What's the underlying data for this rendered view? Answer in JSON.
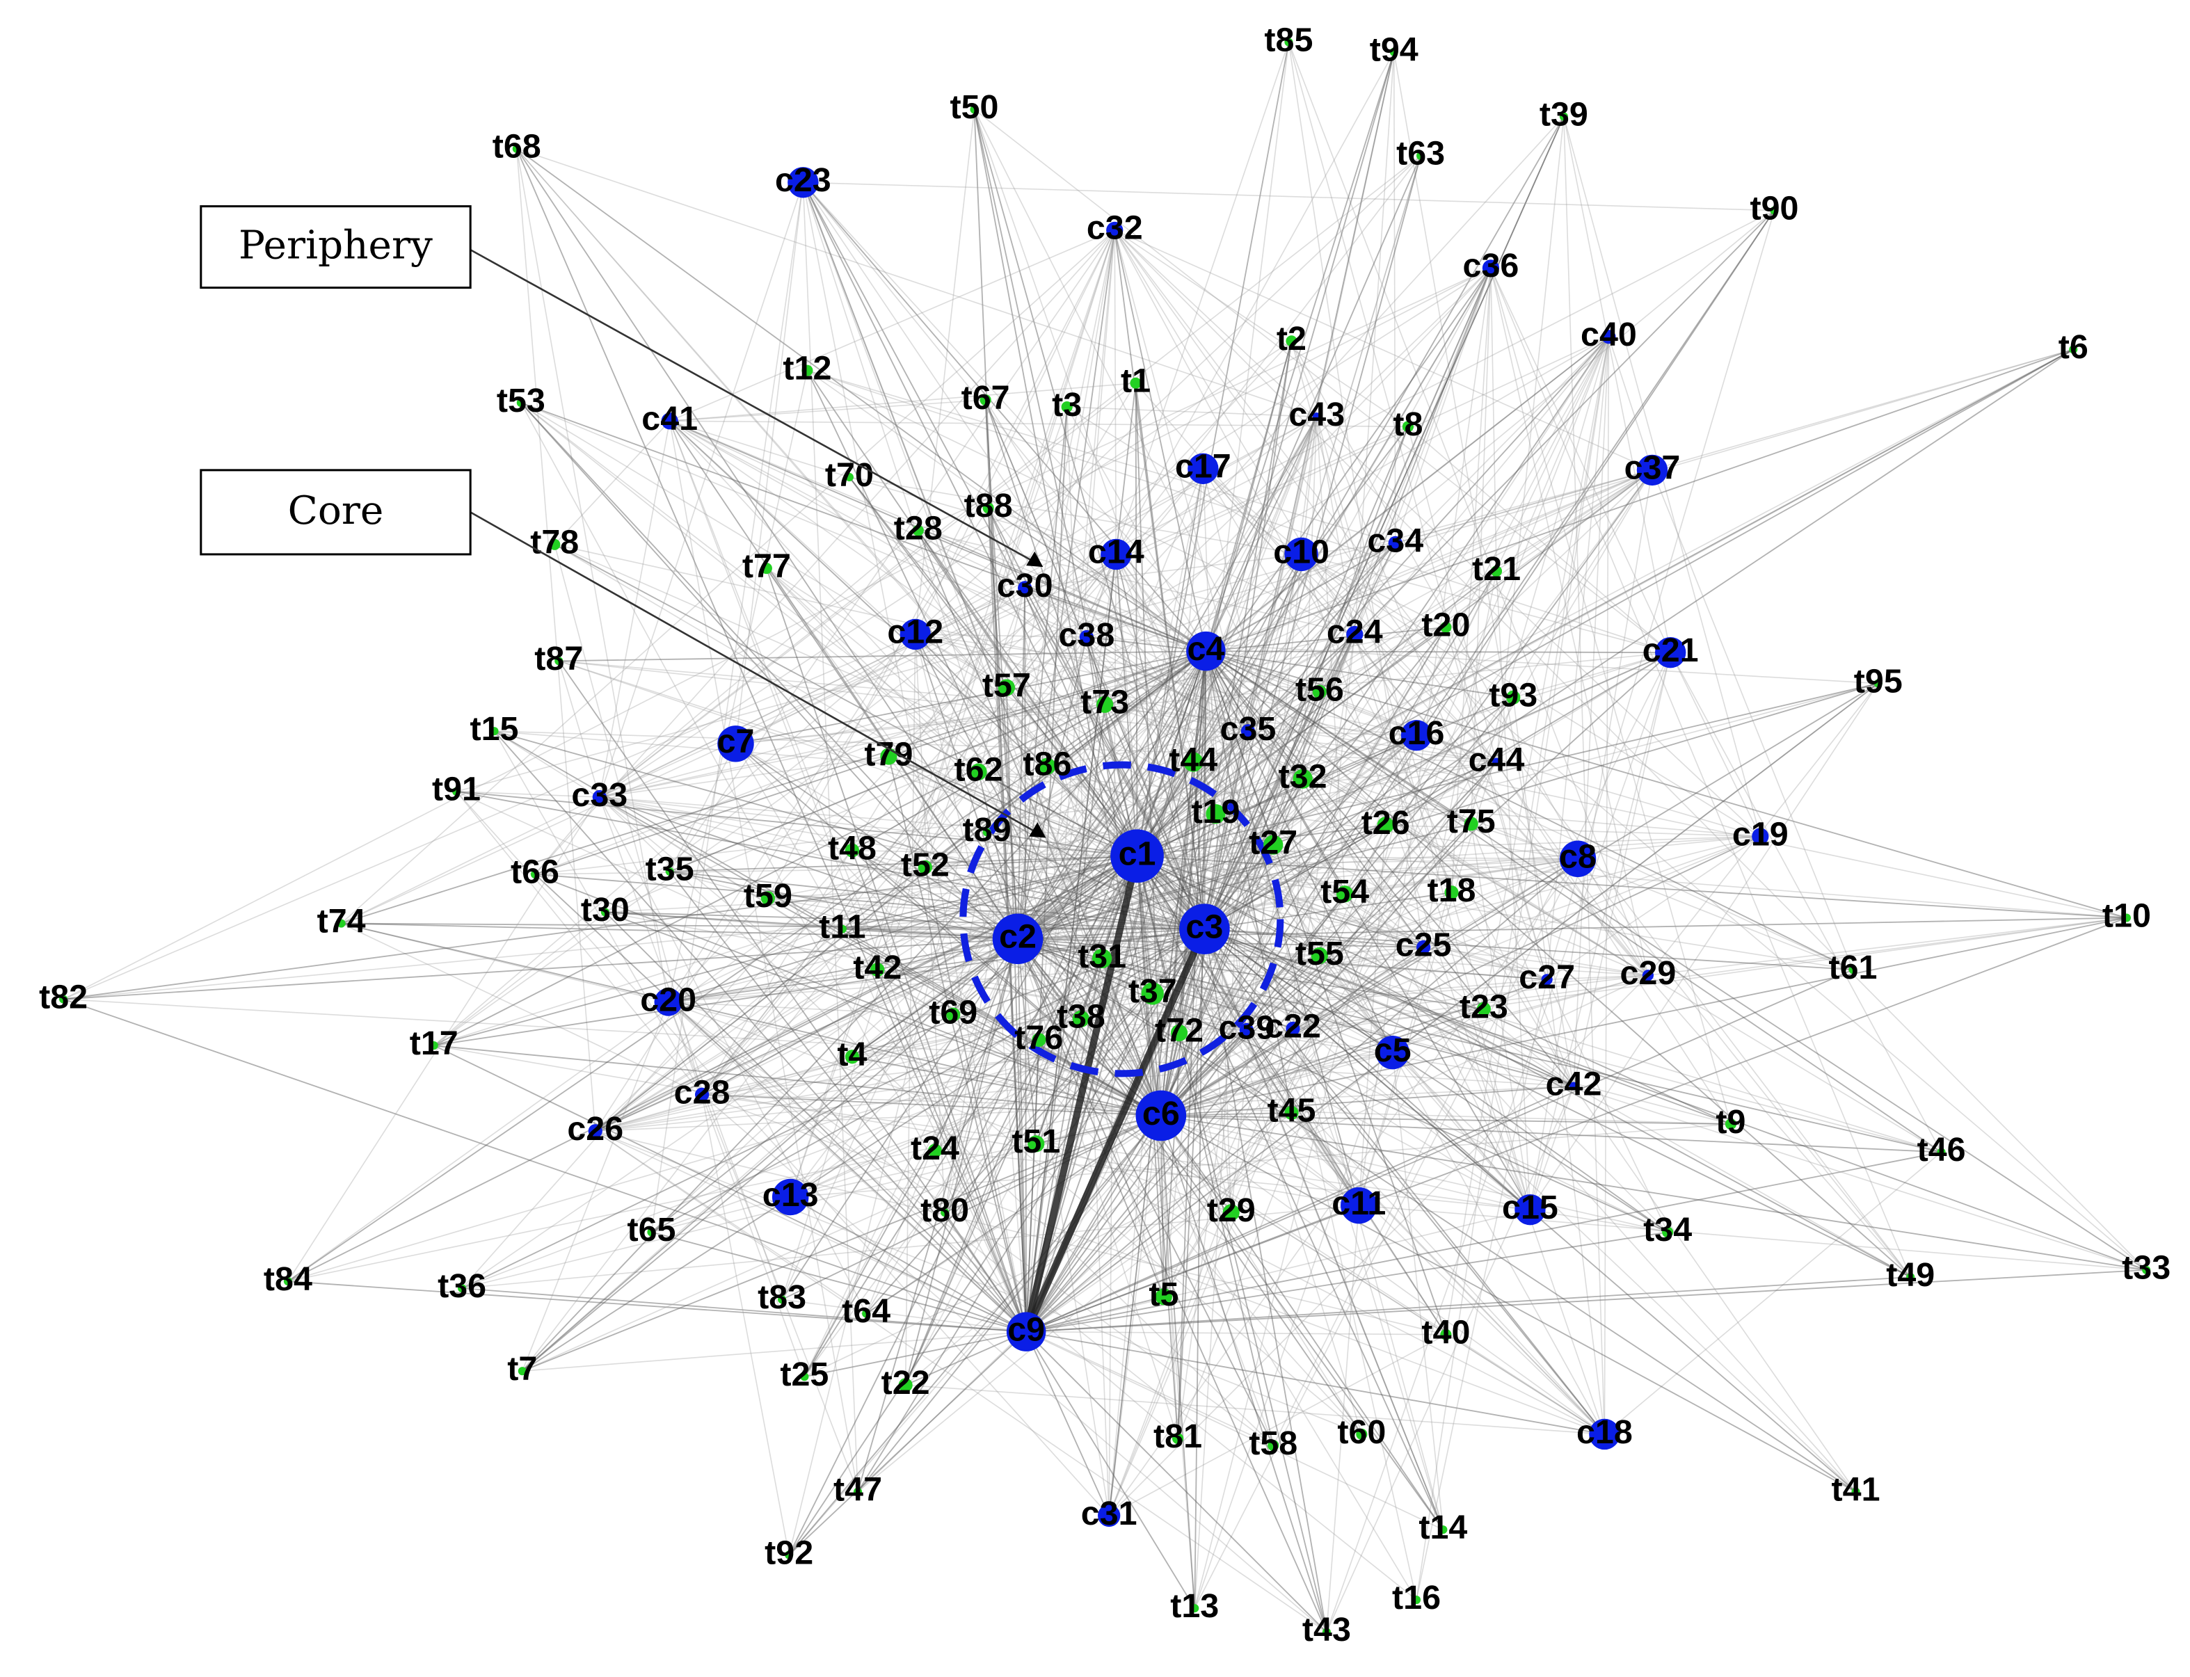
{
  "annotations": {
    "periphery": "Periphery",
    "core": "Core"
  },
  "nodes": [
    "t85",
    "t94",
    "t50",
    "t39",
    "t68",
    "c23",
    "t63",
    "c32",
    "t90",
    "c36",
    "t6",
    "c40",
    "t2",
    "t12",
    "t1",
    "t67",
    "t3",
    "c43",
    "t8",
    "t53",
    "c41",
    "c17",
    "c37",
    "t70",
    "t88",
    "t28",
    "t78",
    "c14",
    "c10",
    "c34",
    "t77",
    "c30",
    "t21",
    "c12",
    "c38",
    "c24",
    "t20",
    "c4",
    "c21",
    "t87",
    "t57",
    "t73",
    "t56",
    "t93",
    "t95",
    "t15",
    "c7",
    "c35",
    "c16",
    "t79",
    "t62",
    "t86",
    "t44",
    "c44",
    "t32",
    "t91",
    "c33",
    "t19",
    "t26",
    "t75",
    "c19",
    "t89",
    "t48",
    "t27",
    "c1",
    "c8",
    "t66",
    "t35",
    "t52",
    "t54",
    "t18",
    "t59",
    "t30",
    "c3",
    "t10",
    "t74",
    "t11",
    "c2",
    "c25",
    "t55",
    "t31",
    "t42",
    "t61",
    "c27",
    "c29",
    "t82",
    "c20",
    "t37",
    "t23",
    "t69",
    "t38",
    "t76",
    "t72",
    "c39",
    "c22",
    "t17",
    "c5",
    "t4",
    "c42",
    "c28",
    "c6",
    "t45",
    "c26",
    "t9",
    "t46",
    "t24",
    "t51",
    "c13",
    "c11",
    "c15",
    "t80",
    "t29",
    "t65",
    "t34",
    "t84",
    "t36",
    "t49",
    "t33",
    "t83",
    "t5",
    "t64",
    "c9",
    "t40",
    "t7",
    "t25",
    "t22",
    "c18",
    "t81",
    "t58",
    "t60",
    "t47",
    "t41",
    "c31",
    "t14",
    "t92",
    "t16",
    "t13",
    "t43"
  ]
}
